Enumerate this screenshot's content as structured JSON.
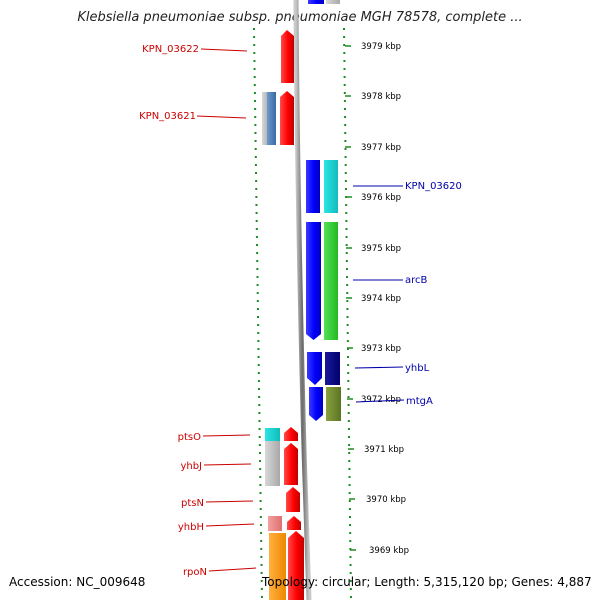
{
  "header": {
    "title": "Klebsiella pneumoniae subsp. pneumoniae MGH 78578, complete ..."
  },
  "footer": {
    "accession": "Accession: NC_009648",
    "summary": "Topology: circular; Length: 5,315,120 bp; Genes: 4,887"
  },
  "ruler": {
    "unit": "kbp",
    "ticks": [
      {
        "label": "3979 kbp"
      },
      {
        "label": "3978 kbp"
      },
      {
        "label": "3977 kbp"
      },
      {
        "label": "3976 kbp"
      },
      {
        "label": "3975 kbp"
      },
      {
        "label": "3974 kbp"
      },
      {
        "label": "3973 kbp"
      },
      {
        "label": "3972 kbp"
      },
      {
        "label": "3971 kbp"
      },
      {
        "label": "3970 kbp"
      },
      {
        "label": "3969 kbp"
      }
    ]
  },
  "genes": {
    "left": [
      {
        "name": "KPN_03622"
      },
      {
        "name": "KPN_03621"
      },
      {
        "name": "ptsO"
      },
      {
        "name": "yhbJ"
      },
      {
        "name": "ptsN"
      },
      {
        "name": "yhbH"
      },
      {
        "name": "rpoN"
      }
    ],
    "right": [
      {
        "name": "KPN_03620"
      },
      {
        "name": "arcB"
      },
      {
        "name": "yhbL"
      },
      {
        "name": "mtgA"
      }
    ]
  },
  "colors": {
    "reverse_strand_label": "#cc0000",
    "forward_strand_label": "#0000aa",
    "dots": "#1f8a1f"
  }
}
